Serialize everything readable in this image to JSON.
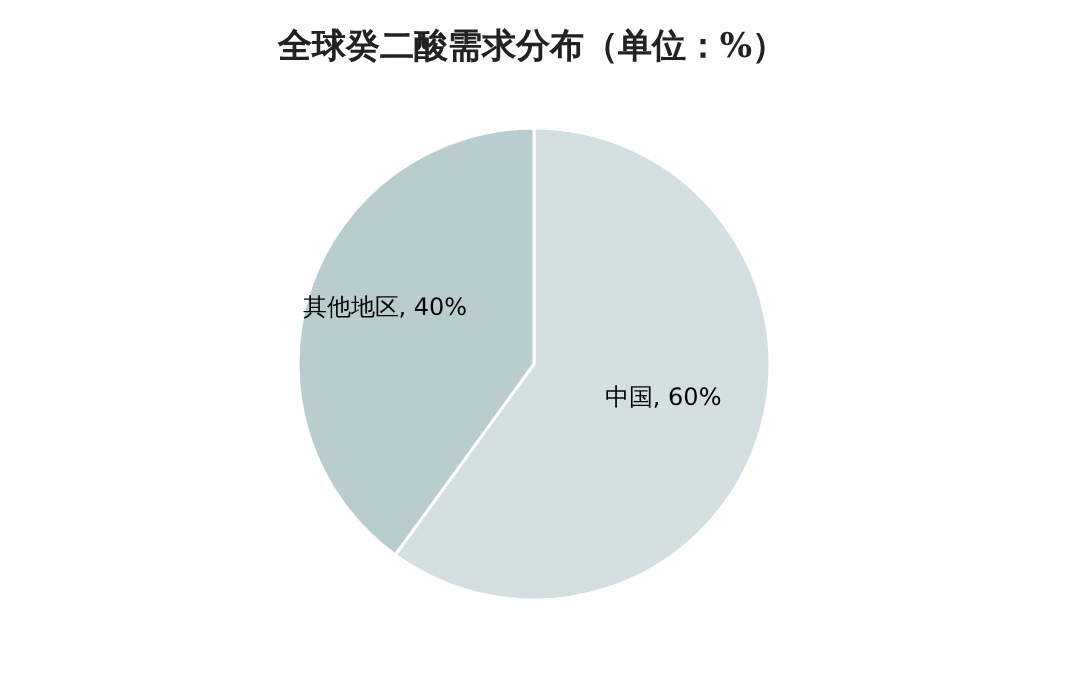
{
  "chart_data": {
    "type": "pie",
    "title": "全球癸二酸需求分布（单位：%）",
    "categories": [
      "中国",
      "其他地区"
    ],
    "values": [
      60,
      40
    ],
    "colors": [
      "#d3dfe0",
      "#b9cdcf"
    ],
    "value_labels": [
      ", 60%",
      ", 40%"
    ],
    "legend": false
  }
}
